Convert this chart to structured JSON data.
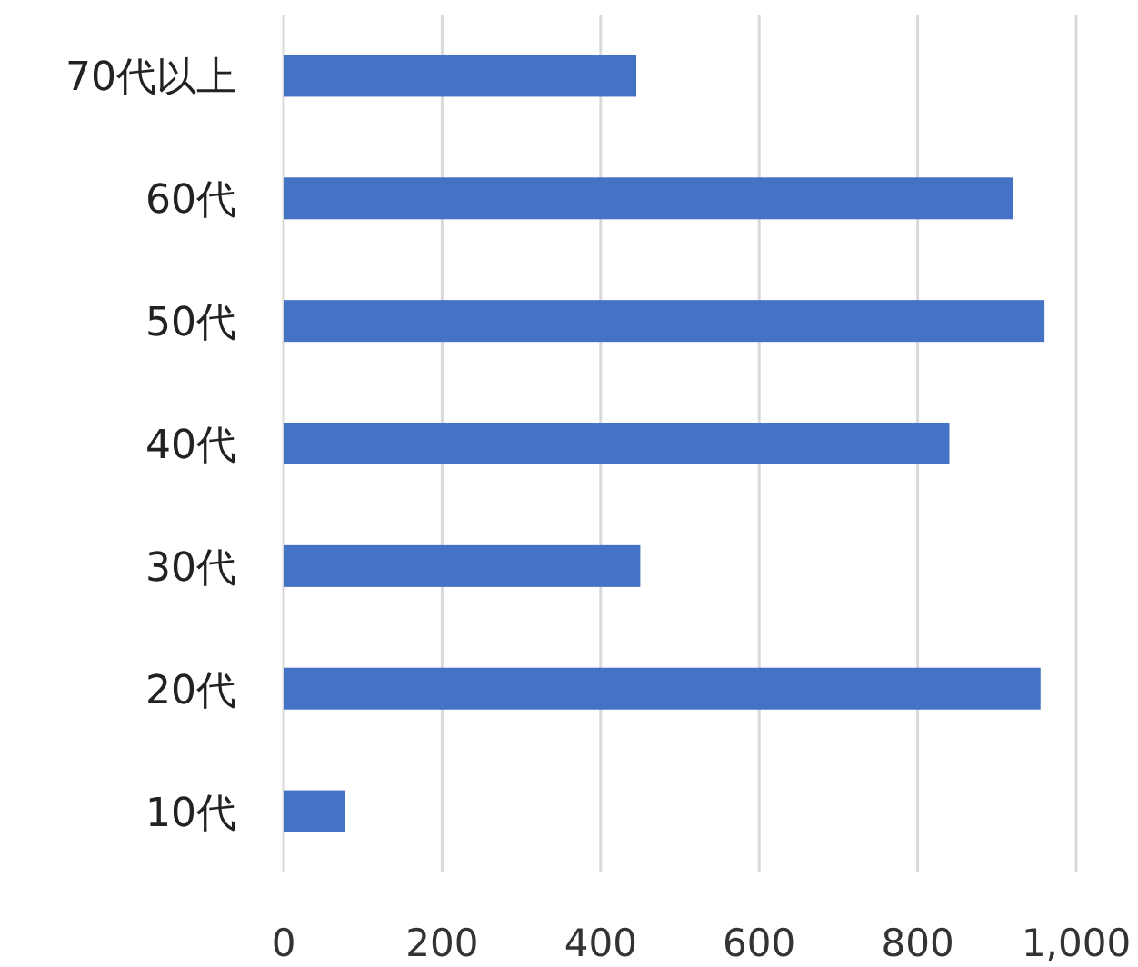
{
  "chart_data": {
    "type": "bar",
    "orientation": "horizontal",
    "categories": [
      "70代以上",
      "60代",
      "50代",
      "40代",
      "30代",
      "20代",
      "10代"
    ],
    "values": [
      445,
      920,
      960,
      840,
      450,
      955,
      78
    ],
    "color": "#4472c4",
    "xlim": [
      0,
      1000
    ],
    "xticks": [
      0,
      200,
      400,
      600,
      800,
      {
        "value": 1000,
        "label": "1,000"
      }
    ],
    "grid": "x"
  }
}
